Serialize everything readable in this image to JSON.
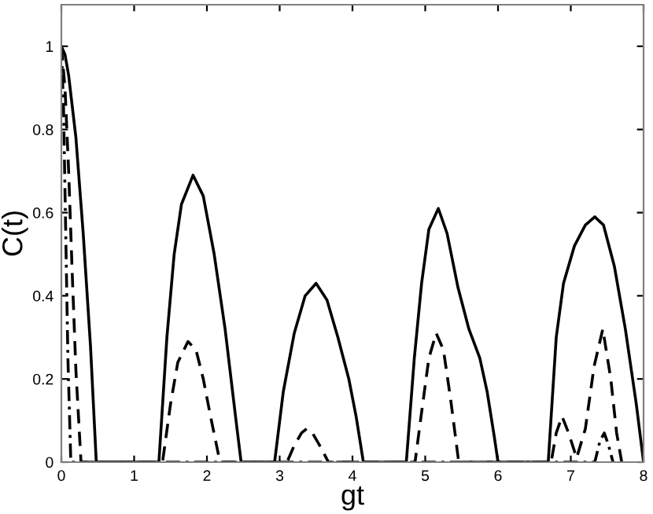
{
  "chart_data": {
    "type": "line",
    "xlabel": "gt",
    "ylabel": "C(t)",
    "xlim": [
      0,
      8
    ],
    "ylim": [
      0,
      1.1
    ],
    "xticks": [
      0,
      1,
      2,
      3,
      4,
      5,
      6,
      7,
      8
    ],
    "yticks": [
      0,
      0.2,
      0.4,
      0.6,
      0.8,
      1
    ],
    "grid": false,
    "legend": false,
    "marker": "none",
    "series": [
      {
        "color": "#000000",
        "line_style": "solid",
        "x": [
          0,
          0.05,
          0.1,
          0.2,
          0.3,
          0.4,
          0.48,
          1.34,
          1.45,
          1.55,
          1.65,
          1.81,
          1.95,
          2.1,
          2.25,
          2.4,
          2.47,
          2.93,
          3.05,
          3.2,
          3.35,
          3.5,
          3.65,
          3.8,
          3.95,
          4.05,
          4.15,
          4.74,
          4.85,
          4.95,
          5.05,
          5.18,
          5.3,
          5.45,
          5.6,
          5.75,
          5.85,
          5.95,
          6.0,
          6.69,
          6.8,
          6.9,
          7.05,
          7.2,
          7.33,
          7.45,
          7.6,
          7.75,
          7.9,
          8.0
        ],
        "values": [
          1,
          0.98,
          0.93,
          0.78,
          0.55,
          0.28,
          0,
          0,
          0.3,
          0.5,
          0.62,
          0.69,
          0.64,
          0.5,
          0.32,
          0.1,
          0,
          0,
          0.17,
          0.31,
          0.4,
          0.43,
          0.39,
          0.3,
          0.2,
          0.11,
          0,
          0,
          0.25,
          0.43,
          0.56,
          0.61,
          0.55,
          0.42,
          0.32,
          0.25,
          0.17,
          0.06,
          0,
          0,
          0.3,
          0.43,
          0.52,
          0.57,
          0.59,
          0.57,
          0.47,
          0.32,
          0.14,
          0
        ]
      },
      {
        "color": "#000000",
        "line_style": "dashed",
        "x": [
          0,
          0.05,
          0.1,
          0.15,
          0.2,
          0.27,
          1.39,
          1.5,
          1.6,
          1.74,
          1.85,
          1.95,
          2.05,
          2.18,
          3.1,
          3.2,
          3.3,
          3.37,
          3.45,
          3.55,
          3.67,
          4.86,
          4.95,
          5.05,
          5.15,
          5.25,
          5.35,
          5.46,
          6.73,
          6.8,
          6.88,
          6.97,
          7.08,
          7.2,
          7.32,
          7.44,
          7.55,
          7.63,
          7.7
        ],
        "values": [
          1,
          0.9,
          0.7,
          0.45,
          0.22,
          0,
          0,
          0.14,
          0.24,
          0.29,
          0.27,
          0.2,
          0.11,
          0,
          0,
          0.04,
          0.07,
          0.08,
          0.07,
          0.04,
          0,
          0,
          0.12,
          0.25,
          0.31,
          0.27,
          0.15,
          0,
          0,
          0.07,
          0.11,
          0.07,
          0.01,
          0.08,
          0.23,
          0.32,
          0.2,
          0.07,
          0
        ]
      },
      {
        "color": "#000000",
        "line_style": "dashdot",
        "x": [
          0,
          0.03,
          0.06,
          0.09,
          0.13,
          7.33,
          7.4,
          7.46,
          7.52,
          7.58
        ],
        "values": [
          1,
          0.85,
          0.55,
          0.25,
          0,
          0,
          0.05,
          0.07,
          0.04,
          0
        ]
      }
    ]
  }
}
